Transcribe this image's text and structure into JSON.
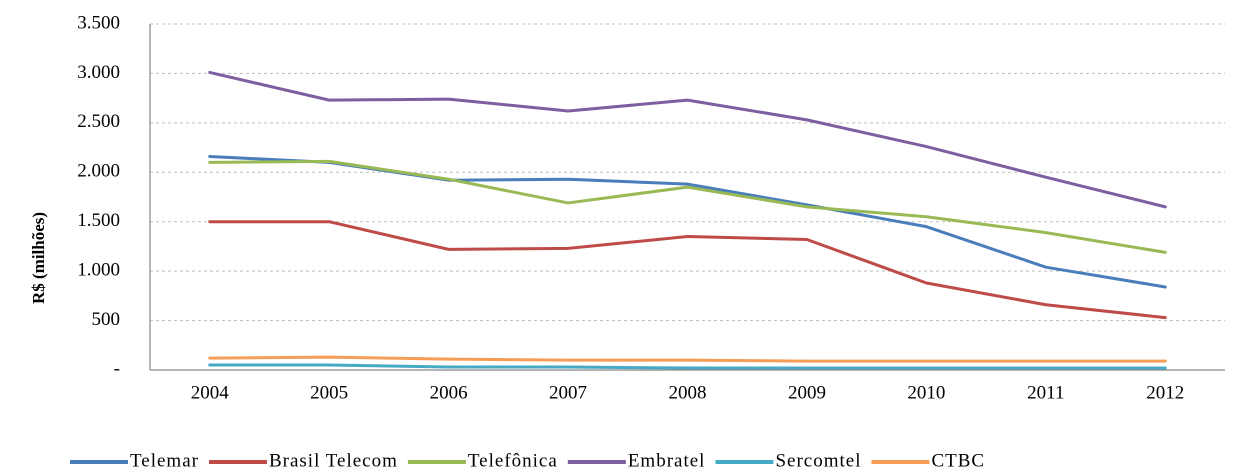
{
  "chart_data": {
    "type": "line",
    "y_label": "R$ (milhões)",
    "categories": [
      "2004",
      "2005",
      "2006",
      "2007",
      "2008",
      "2009",
      "2010",
      "2011",
      "2012"
    ],
    "series": [
      {
        "name": "Telemar",
        "color": "#4a7ebb",
        "values": [
          2160,
          2100,
          1920,
          1930,
          1880,
          1670,
          1450,
          1040,
          840
        ]
      },
      {
        "name": "Brasil Telecom",
        "color": "#be4b48",
        "values": [
          1500,
          1500,
          1220,
          1230,
          1350,
          1320,
          880,
          660,
          530
        ]
      },
      {
        "name": "Telefônica",
        "color": "#98b954",
        "values": [
          2100,
          2110,
          1930,
          1690,
          1850,
          1650,
          1550,
          1390,
          1190
        ]
      },
      {
        "name": "Embratel",
        "color": "#7d5fa0",
        "values": [
          3010,
          2730,
          2740,
          2620,
          2730,
          2530,
          2260,
          1950,
          1650
        ]
      },
      {
        "name": "Sercomtel",
        "color": "#46aac5",
        "values": [
          50,
          50,
          30,
          30,
          20,
          20,
          20,
          20,
          20
        ]
      },
      {
        "name": "CTBC",
        "color": "#f59d56",
        "values": [
          120,
          130,
          110,
          100,
          100,
          90,
          90,
          90,
          90
        ]
      }
    ],
    "ylim": [
      0,
      3500
    ],
    "yticks": [
      {
        "value": 0,
        "label": "-"
      },
      500,
      {
        "value": 1000,
        "label": "1.000"
      },
      {
        "value": 1500,
        "label": "1.500"
      },
      {
        "value": 2000,
        "label": "2.000"
      },
      {
        "value": 2500,
        "label": "2.500"
      },
      {
        "value": 3000,
        "label": "3.000"
      },
      {
        "value": 3500,
        "label": "3.500"
      }
    ],
    "grid": true,
    "legend": "bottom"
  }
}
